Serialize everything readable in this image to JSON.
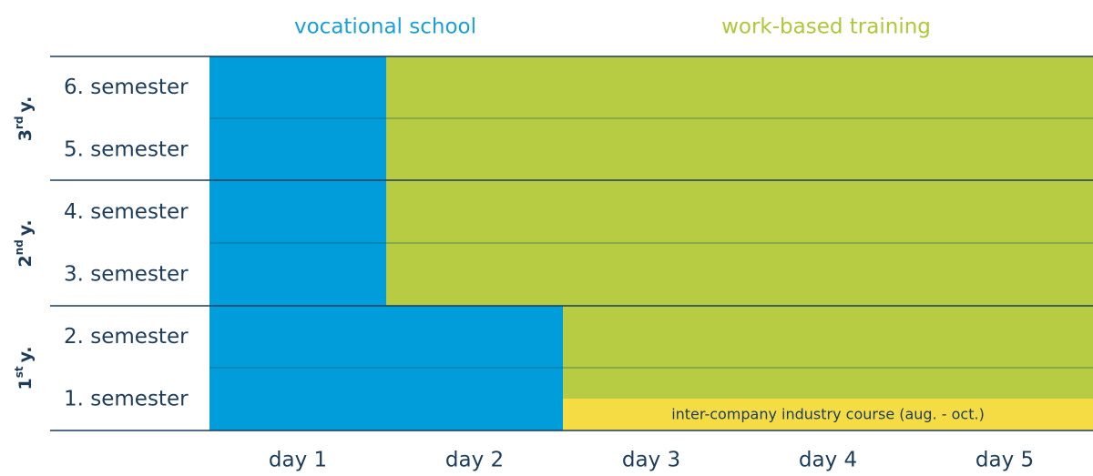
{
  "legend": {
    "vocational": "vocational school",
    "work": "work-based training"
  },
  "years": [
    {
      "number": "3",
      "suffix": "rd",
      "label": "y."
    },
    {
      "number": "2",
      "suffix": "nd",
      "label": "y."
    },
    {
      "number": "1",
      "suffix": "st",
      "label": "y."
    }
  ],
  "semesters": [
    "6. semester",
    "5. semester",
    "4. semester",
    "3. semester",
    "2. semester",
    "1. semester"
  ],
  "days": [
    "day 1",
    "day 2",
    "day 3",
    "day 4",
    "day 5"
  ],
  "course": "inter-company industry course (aug. - oct.)"
}
